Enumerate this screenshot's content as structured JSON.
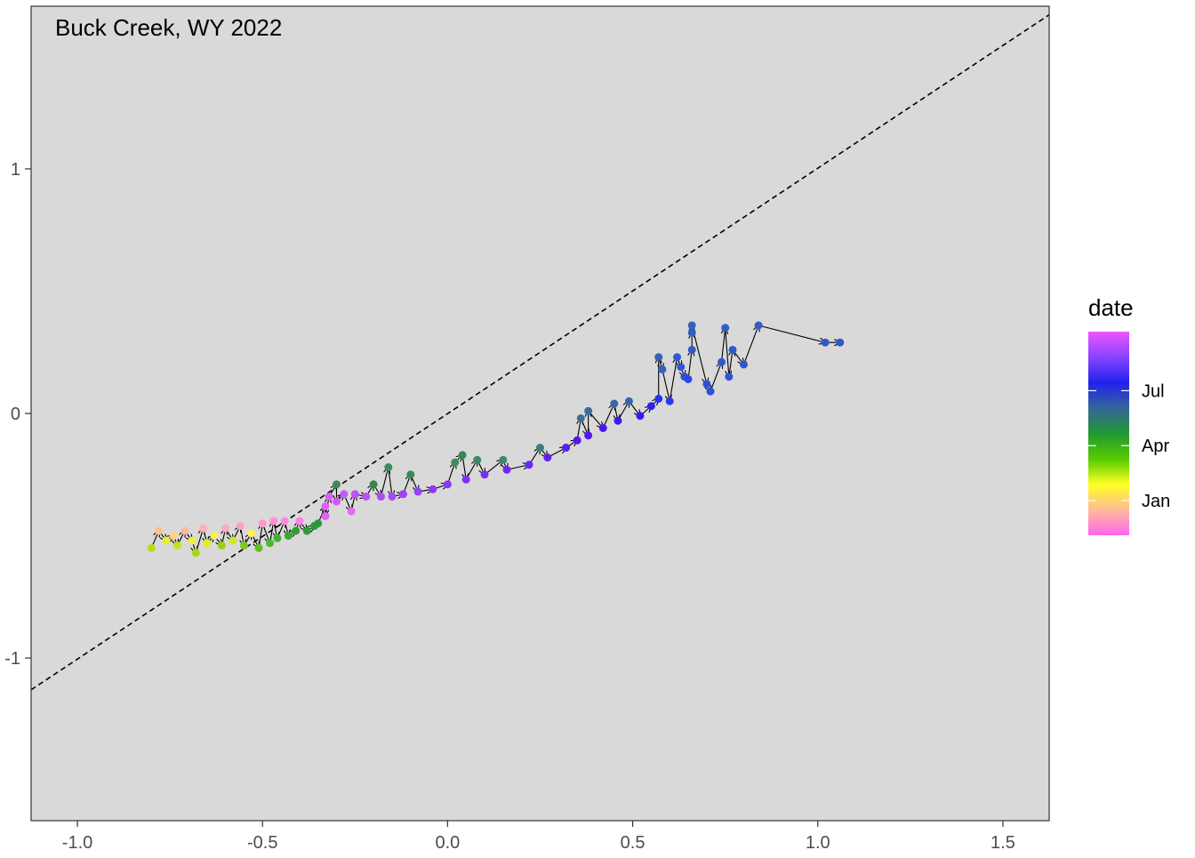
{
  "chart_data": {
    "type": "scatter",
    "title": "Buck Creek, WY 2022",
    "xlabel": "",
    "ylabel": "",
    "xlim": [
      -1.125,
      1.625
    ],
    "ylim": [
      -1.665,
      1.665
    ],
    "x_ticks": [
      -1.0,
      -0.5,
      0.0,
      0.5,
      1.0,
      1.5
    ],
    "x_tick_labels": [
      "-1.0",
      "-0.5",
      "0.0",
      "0.5",
      "1.0",
      "1.5"
    ],
    "y_ticks": [
      -1,
      0,
      1
    ],
    "y_tick_labels": [
      "-1",
      "0",
      "1"
    ],
    "background_color": "#d9d9d9",
    "grid": false,
    "reference_line": {
      "style": "dashed",
      "color": "#000000",
      "from": [
        -1.125,
        -1.13
      ],
      "to": [
        1.625,
        1.63
      ]
    },
    "connected_with_arrows": true,
    "arrow_color": "#000000",
    "legend": {
      "title": "date",
      "placement": "right",
      "type": "colorbar",
      "labels": [
        "Jul",
        "Apr",
        "Jan"
      ],
      "label_fractions": [
        0.71,
        0.44,
        0.17
      ],
      "colors_top_to_bottom": [
        "#ee55ff",
        "#8844ff",
        "#2222ee",
        "#336699",
        "#229933",
        "#55cc00",
        "#ffff22",
        "#ffbb99",
        "#ff66ee"
      ]
    },
    "points": [
      {
        "x": -0.8,
        "y": -0.55,
        "color": "#b8dd10"
      },
      {
        "x": -0.78,
        "y": -0.48,
        "color": "#ffc090"
      },
      {
        "x": -0.76,
        "y": -0.52,
        "color": "#e8ee30"
      },
      {
        "x": -0.74,
        "y": -0.5,
        "color": "#ffd080"
      },
      {
        "x": -0.73,
        "y": -0.54,
        "color": "#c8e020"
      },
      {
        "x": -0.71,
        "y": -0.48,
        "color": "#ffb8a0"
      },
      {
        "x": -0.69,
        "y": -0.52,
        "color": "#f0f040"
      },
      {
        "x": -0.68,
        "y": -0.57,
        "color": "#a8d810"
      },
      {
        "x": -0.66,
        "y": -0.47,
        "color": "#ffb0b0"
      },
      {
        "x": -0.65,
        "y": -0.53,
        "color": "#e0ee20"
      },
      {
        "x": -0.63,
        "y": -0.5,
        "color": "#f8f050"
      },
      {
        "x": -0.61,
        "y": -0.54,
        "color": "#98d010"
      },
      {
        "x": -0.6,
        "y": -0.47,
        "color": "#ffa8c0"
      },
      {
        "x": -0.58,
        "y": -0.52,
        "color": "#d0e820"
      },
      {
        "x": -0.56,
        "y": -0.46,
        "color": "#ffa0c8"
      },
      {
        "x": -0.55,
        "y": -0.54,
        "color": "#80c820"
      },
      {
        "x": -0.53,
        "y": -0.49,
        "color": "#fff060"
      },
      {
        "x": -0.51,
        "y": -0.55,
        "color": "#60c020"
      },
      {
        "x": -0.5,
        "y": -0.45,
        "color": "#ff98d0"
      },
      {
        "x": -0.48,
        "y": -0.53,
        "color": "#50b828"
      },
      {
        "x": -0.47,
        "y": -0.44,
        "color": "#ff90d8"
      },
      {
        "x": -0.46,
        "y": -0.51,
        "color": "#40b030"
      },
      {
        "x": -0.44,
        "y": -0.44,
        "color": "#ff88e0"
      },
      {
        "x": -0.43,
        "y": -0.5,
        "color": "#38a830"
      },
      {
        "x": -0.41,
        "y": -0.48,
        "color": "#30a030"
      },
      {
        "x": -0.4,
        "y": -0.44,
        "color": "#ff80e8"
      },
      {
        "x": -0.38,
        "y": -0.48,
        "color": "#309c38"
      },
      {
        "x": -0.36,
        "y": -0.46,
        "color": "#2c9838"
      },
      {
        "x": -0.35,
        "y": -0.45,
        "color": "#2a9640"
      },
      {
        "x": -0.33,
        "y": -0.38,
        "color": "#e060f8"
      },
      {
        "x": -0.33,
        "y": -0.42,
        "color": "#e060f8"
      },
      {
        "x": -0.32,
        "y": -0.34,
        "color": "#d860f8"
      },
      {
        "x": -0.3,
        "y": -0.29,
        "color": "#3c8a58"
      },
      {
        "x": -0.3,
        "y": -0.36,
        "color": "#d058f8"
      },
      {
        "x": -0.28,
        "y": -0.33,
        "color": "#c858f8"
      },
      {
        "x": -0.26,
        "y": -0.4,
        "color": "#e868f8"
      },
      {
        "x": -0.25,
        "y": -0.33,
        "color": "#c050f8"
      },
      {
        "x": -0.22,
        "y": -0.34,
        "color": "#b850f8"
      },
      {
        "x": -0.2,
        "y": -0.29,
        "color": "#308848"
      },
      {
        "x": -0.18,
        "y": -0.34,
        "color": "#b048f8"
      },
      {
        "x": -0.16,
        "y": -0.22,
        "color": "#408860"
      },
      {
        "x": -0.15,
        "y": -0.34,
        "color": "#a848f8"
      },
      {
        "x": -0.12,
        "y": -0.33,
        "color": "#a040f8"
      },
      {
        "x": -0.1,
        "y": -0.25,
        "color": "#388858"
      },
      {
        "x": -0.08,
        "y": -0.32,
        "color": "#9840f8"
      },
      {
        "x": -0.04,
        "y": -0.31,
        "color": "#9038f8"
      },
      {
        "x": 0.0,
        "y": -0.29,
        "color": "#8838f8"
      },
      {
        "x": 0.02,
        "y": -0.2,
        "color": "#3c8c60"
      },
      {
        "x": 0.04,
        "y": -0.17,
        "color": "#348a50"
      },
      {
        "x": 0.05,
        "y": -0.27,
        "color": "#8030f8"
      },
      {
        "x": 0.08,
        "y": -0.19,
        "color": "#3c8866"
      },
      {
        "x": 0.1,
        "y": -0.25,
        "color": "#7830f0"
      },
      {
        "x": 0.15,
        "y": -0.19,
        "color": "#408870"
      },
      {
        "x": 0.16,
        "y": -0.23,
        "color": "#7028f0"
      },
      {
        "x": 0.22,
        "y": -0.21,
        "color": "#6828f0"
      },
      {
        "x": 0.25,
        "y": -0.14,
        "color": "#3c7e80"
      },
      {
        "x": 0.27,
        "y": -0.18,
        "color": "#6020f0"
      },
      {
        "x": 0.32,
        "y": -0.14,
        "color": "#5820f0"
      },
      {
        "x": 0.35,
        "y": -0.11,
        "color": "#5418f0"
      },
      {
        "x": 0.36,
        "y": -0.02,
        "color": "#3a6e9c"
      },
      {
        "x": 0.38,
        "y": -0.09,
        "color": "#5018f0"
      },
      {
        "x": 0.38,
        "y": 0.01,
        "color": "#3a6c9e"
      },
      {
        "x": 0.42,
        "y": -0.06,
        "color": "#4818f0"
      },
      {
        "x": 0.45,
        "y": 0.04,
        "color": "#3a66a8"
      },
      {
        "x": 0.46,
        "y": -0.03,
        "color": "#4018f0"
      },
      {
        "x": 0.49,
        "y": 0.05,
        "color": "#3864b0"
      },
      {
        "x": 0.52,
        "y": -0.01,
        "color": "#3818f0"
      },
      {
        "x": 0.55,
        "y": 0.03,
        "color": "#3020f0"
      },
      {
        "x": 0.57,
        "y": 0.06,
        "color": "#2830f0"
      },
      {
        "x": 0.57,
        "y": 0.23,
        "color": "#3860b8"
      },
      {
        "x": 0.58,
        "y": 0.18,
        "color": "#3560c0"
      },
      {
        "x": 0.6,
        "y": 0.05,
        "color": "#2838e8"
      },
      {
        "x": 0.62,
        "y": 0.23,
        "color": "#3458c8"
      },
      {
        "x": 0.63,
        "y": 0.19,
        "color": "#3258cc"
      },
      {
        "x": 0.64,
        "y": 0.15,
        "color": "#3050d0"
      },
      {
        "x": 0.65,
        "y": 0.14,
        "color": "#2c48e0"
      },
      {
        "x": 0.66,
        "y": 0.26,
        "color": "#3458c4"
      },
      {
        "x": 0.66,
        "y": 0.33,
        "color": "#3660c0"
      },
      {
        "x": 0.66,
        "y": 0.36,
        "color": "#3662bc"
      },
      {
        "x": 0.7,
        "y": 0.12,
        "color": "#3050d4"
      },
      {
        "x": 0.71,
        "y": 0.09,
        "color": "#3050d8"
      },
      {
        "x": 0.74,
        "y": 0.21,
        "color": "#3258cc"
      },
      {
        "x": 0.75,
        "y": 0.35,
        "color": "#345ec4"
      },
      {
        "x": 0.76,
        "y": 0.15,
        "color": "#3054d0"
      },
      {
        "x": 0.77,
        "y": 0.26,
        "color": "#3258c8"
      },
      {
        "x": 0.8,
        "y": 0.2,
        "color": "#3056cc"
      },
      {
        "x": 0.84,
        "y": 0.36,
        "color": "#345cc4"
      },
      {
        "x": 1.02,
        "y": 0.29,
        "color": "#3258c8"
      },
      {
        "x": 1.06,
        "y": 0.29,
        "color": "#3258c8"
      }
    ]
  }
}
